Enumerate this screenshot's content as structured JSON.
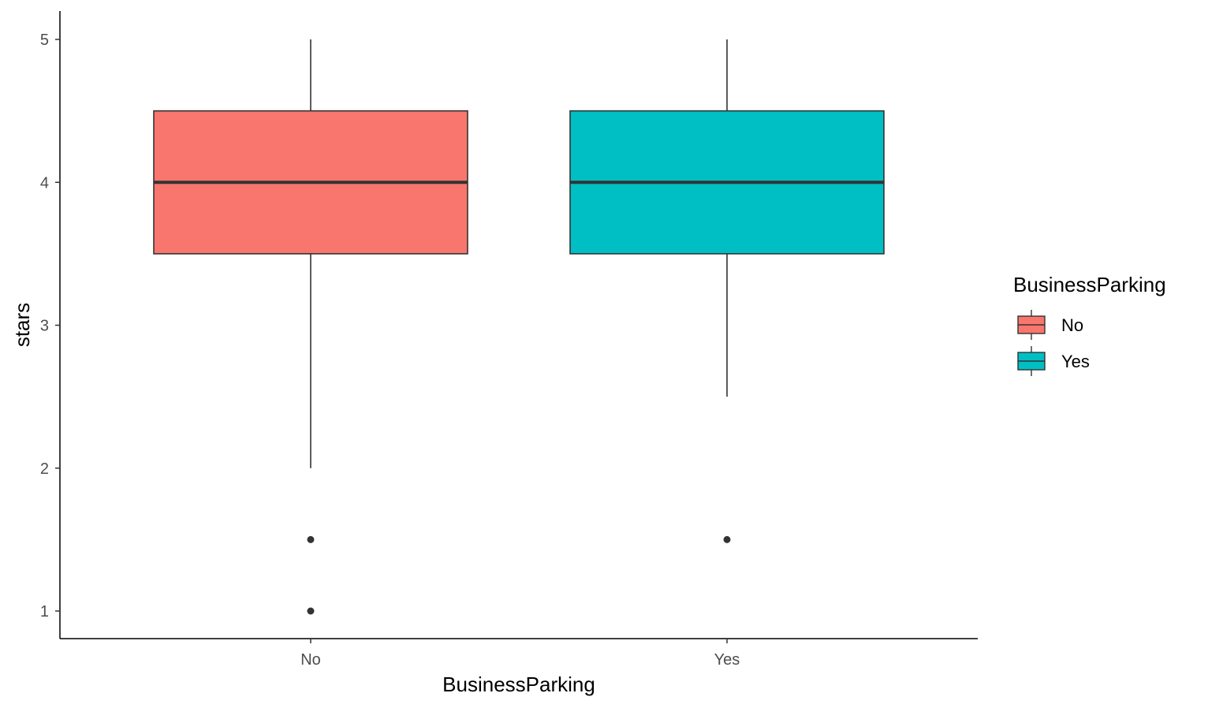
{
  "chart_data": {
    "type": "boxplot",
    "xlabel": "BusinessParking",
    "ylabel": "stars",
    "ylim": [
      0.8,
      5.2
    ],
    "yticks": [
      1,
      2,
      3,
      4,
      5
    ],
    "grid": false,
    "legend": {
      "title": "BusinessParking",
      "position": "right",
      "entries": [
        {
          "label": "No",
          "color": "#F8766D"
        },
        {
          "label": "Yes",
          "color": "#00BFC4"
        }
      ]
    },
    "categories": [
      "No",
      "Yes"
    ],
    "boxes": [
      {
        "category": "No",
        "color": "#F8766D",
        "whisker_low": 2.0,
        "q1": 3.5,
        "median": 4.0,
        "q3": 4.5,
        "whisker_high": 5.0,
        "outliers": [
          1.5,
          1.0
        ]
      },
      {
        "category": "Yes",
        "color": "#00BFC4",
        "whisker_low": 2.5,
        "q1": 3.5,
        "median": 4.0,
        "q3": 4.5,
        "whisker_high": 5.0,
        "outliers": [
          1.5
        ]
      }
    ]
  }
}
